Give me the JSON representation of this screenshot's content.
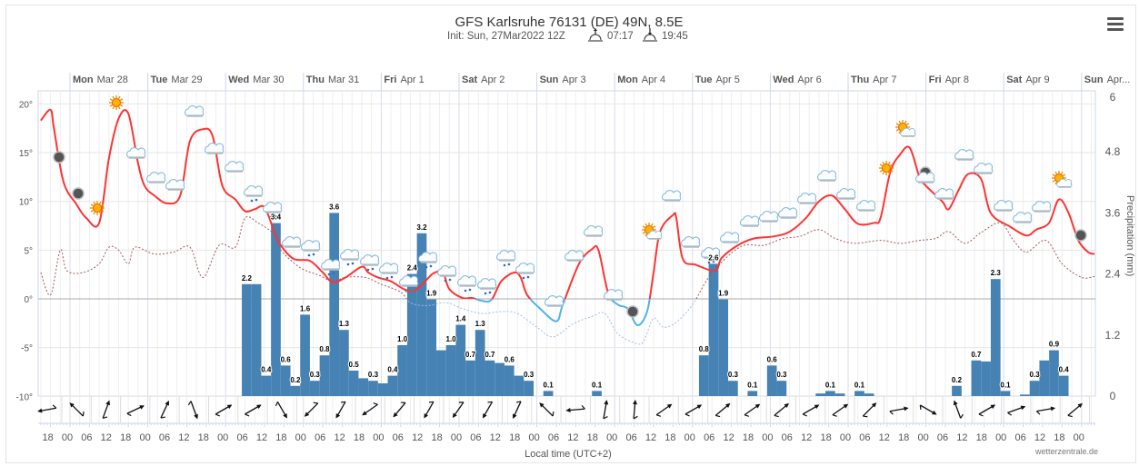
{
  "chart_data": {
    "type": "line+bar",
    "title": "GFS Karlsruhe 76131 (DE) 49N, 8.5E",
    "subtitle": {
      "init": "Init: Sun, 27Mar2022 12Z",
      "sunrise": "07:17",
      "sunset": "19:45"
    },
    "xlabel": "Local time (UTC+2)",
    "ylabel_right": "Precipitation (mm)",
    "credit": "wetterzentrale.de",
    "x_units": "hours since Mon Mar 28 00:00 local",
    "days": [
      {
        "weekday": "Mon",
        "date": "Mar 28"
      },
      {
        "weekday": "Tue",
        "date": "Mar 29"
      },
      {
        "weekday": "Wed",
        "date": "Mar 30"
      },
      {
        "weekday": "Thu",
        "date": "Mar 31"
      },
      {
        "weekday": "Fri",
        "date": "Apr 1"
      },
      {
        "weekday": "Sat",
        "date": "Apr 2"
      },
      {
        "weekday": "Sun",
        "date": "Apr 3"
      },
      {
        "weekday": "Mon",
        "date": "Apr 4"
      },
      {
        "weekday": "Tue",
        "date": "Apr 5"
      },
      {
        "weekday": "Wed",
        "date": "Apr 6"
      },
      {
        "weekday": "Thu",
        "date": "Apr 7"
      },
      {
        "weekday": "Fri",
        "date": "Apr 8"
      },
      {
        "weekday": "Sat",
        "date": "Apr 9"
      },
      {
        "weekday": "Sun",
        "date": "Apr..."
      }
    ],
    "x_tick_labels": [
      "18",
      "00",
      "06",
      "12",
      "18",
      "00",
      "06",
      "12",
      "18",
      "00",
      "06",
      "12",
      "18",
      "00",
      "06",
      "12",
      "18",
      "00",
      "06",
      "12",
      "18",
      "00",
      "06",
      "12",
      "18",
      "00",
      "06",
      "12",
      "18",
      "00",
      "06",
      "12",
      "18",
      "00",
      "06",
      "12",
      "18",
      "00",
      "06",
      "12",
      "18",
      "00",
      "06",
      "12",
      "18",
      "00",
      "06",
      "12",
      "18",
      "00",
      "06",
      "12",
      "18",
      "00"
    ],
    "y_left": {
      "ticks": [
        "20°",
        "15°",
        "10°",
        "5°",
        "0°",
        "-5°",
        "-10°"
      ],
      "values": [
        20,
        15,
        10,
        5,
        0,
        -5,
        -10
      ],
      "range": [
        -10,
        20
      ]
    },
    "y_right": {
      "ticks": [
        "6",
        "4.8",
        "3.6",
        "2.4",
        "1.2",
        "0"
      ],
      "values": [
        6,
        4.8,
        3.6,
        2.4,
        1.2,
        0
      ],
      "range": [
        0,
        6
      ]
    },
    "colors": {
      "temp_warm": "#ff3333",
      "temp_cold": "#4fb3ec",
      "dew_warm": "#a05a5a",
      "dew_cold": "#9fbde3",
      "precip": "#4682b4"
    },
    "temperature": {
      "name": "Temperature (°C)",
      "x": [
        -9,
        -6,
        -5,
        -2,
        2,
        5,
        9,
        12,
        15,
        18,
        21,
        23,
        26,
        30,
        34,
        37,
        41,
        44,
        47,
        51,
        54,
        57,
        60,
        63,
        65,
        69,
        74,
        78,
        81,
        85,
        90,
        92,
        95,
        99,
        103,
        106,
        109,
        112,
        115,
        117,
        121,
        124,
        127,
        130,
        133,
        137,
        139,
        141,
        145,
        150,
        152,
        157,
        161,
        163,
        166,
        169,
        172,
        175,
        178,
        180,
        182,
        186,
        187,
        189,
        193,
        199,
        201,
        206,
        211,
        217,
        222,
        227,
        231,
        235,
        239,
        243,
        248,
        250,
        253,
        256,
        259,
        262,
        264,
        269,
        271,
        274,
        277,
        281,
        284,
        290,
        295,
        298,
        302,
        305,
        308,
        311,
        314,
        316
      ],
      "y": [
        18.3,
        19.4,
        17.6,
        12,
        9.7,
        8.3,
        7.8,
        14.4,
        18.5,
        19,
        13.9,
        11.6,
        10.6,
        9.8,
        10.6,
        16.2,
        17.4,
        16.7,
        11.6,
        10.2,
        9,
        9.2,
        9.4,
        6.9,
        5.5,
        4.1,
        3.9,
        2.7,
        1.7,
        2.2,
        3.3,
        2.7,
        2.2,
        1.8,
        1,
        0.8,
        1.6,
        2.6,
        2.7,
        1,
        0.1,
        0.1,
        -0.2,
        -0.1,
        1.8,
        2.7,
        2.2,
        0.4,
        -1,
        -2.3,
        -0.6,
        3.6,
        5.1,
        5,
        0.6,
        -0.6,
        -1,
        -2.7,
        -1.3,
        2.7,
        6.9,
        8.6,
        8.3,
        4.1,
        3.5,
        2.9,
        4.2,
        5.5,
        6.2,
        6.4,
        6.9,
        8.3,
        10,
        10.6,
        9.2,
        7.7,
        7.8,
        8.3,
        13,
        14.8,
        15.5,
        12.5,
        11.6,
        10,
        9.2,
        11.1,
        12.8,
        12.3,
        8.8,
        7.4,
        6.5,
        7.1,
        7.8,
        10.2,
        8.8,
        6,
        4.8,
        4.6
      ]
    },
    "dewpoint": {
      "name": "Dew point (°C)",
      "x": [
        -9,
        -6,
        -3,
        -1,
        4,
        9,
        12,
        15,
        18,
        20,
        26,
        32,
        37,
        41,
        46,
        51,
        54,
        58,
        63,
        65,
        71,
        77,
        81,
        85,
        91,
        96,
        102,
        105,
        110,
        116,
        121,
        127,
        133,
        138,
        144,
        149,
        155,
        161,
        165,
        169,
        175,
        177,
        180,
        183,
        187,
        192,
        197,
        203,
        208,
        214,
        220,
        225,
        231,
        236,
        242,
        250,
        256,
        262,
        267,
        271,
        276,
        281,
        287,
        291,
        295,
        301,
        306,
        312,
        316
      ],
      "y": [
        2.7,
        0.4,
        5,
        2.9,
        2.7,
        3.6,
        5.3,
        5,
        3.6,
        5.3,
        4.6,
        4.8,
        5.3,
        2.2,
        5.5,
        5.3,
        8.3,
        7.8,
        6.6,
        5,
        3.2,
        2.4,
        1.8,
        2.2,
        2.2,
        1.5,
        0.7,
        -0.4,
        -0.7,
        -0.4,
        -1,
        -1.5,
        -1.3,
        -1.5,
        -2.9,
        -3.9,
        -2.6,
        -1.8,
        -1.5,
        -3.6,
        -4.6,
        -4.3,
        -2,
        -2.9,
        -2.4,
        -0.6,
        2.2,
        4.4,
        5.5,
        5.5,
        6.2,
        6.4,
        7.1,
        6.2,
        5.7,
        6,
        5.7,
        6,
        6.2,
        6.9,
        5.7,
        6.8,
        7.8,
        6,
        4.8,
        6,
        3.6,
        2.2,
        2.3
      ]
    },
    "precipitation": {
      "name": "Precipitation (mm / 3h)",
      "bar_hours": 3,
      "start": [
        53,
        56,
        59,
        62,
        65,
        68,
        71,
        74,
        77,
        80,
        83,
        86,
        89,
        92,
        95,
        98,
        101,
        104,
        107,
        110,
        113,
        116,
        119,
        122,
        125,
        128,
        131,
        134,
        137,
        140,
        146,
        161,
        194,
        197,
        200,
        203,
        209,
        215,
        218,
        230,
        233,
        236,
        242,
        245,
        272,
        278,
        281,
        284,
        287,
        293,
        296,
        299,
        302,
        305
      ],
      "values": [
        2.2,
        2.2,
        0.4,
        3.4,
        0.6,
        0.2,
        1.6,
        0.3,
        0.8,
        3.6,
        1.3,
        0.5,
        0.35,
        0.3,
        0.25,
        0.4,
        1.0,
        2.4,
        3.2,
        1.9,
        0.9,
        1.0,
        1.4,
        0.7,
        1.3,
        0.7,
        0.65,
        0.6,
        0.4,
        0.3,
        0.1,
        0.1,
        0.8,
        2.6,
        1.9,
        0.3,
        0.1,
        0.6,
        0.3,
        0.05,
        0.1,
        0.05,
        0.1,
        0.05,
        0.2,
        0.7,
        0.68,
        2.3,
        0.1,
        0.03,
        0.3,
        0.7,
        0.9,
        0.4
      ],
      "labels": [
        "2.2",
        "",
        "0.4",
        "3.4",
        "0.6",
        "0.2",
        "1.6",
        "0.3",
        "0.8",
        "3.6",
        "1.3",
        "0.5",
        "",
        "0.3",
        "",
        "0.4",
        "1.0",
        "2.4",
        "3.2",
        "1.9",
        "",
        "1.0",
        "1.4",
        "0.7",
        "1.3",
        "0.7",
        "",
        "0.6",
        "",
        "0.3",
        "0.1",
        "0.1",
        "0.8",
        "2.6",
        "1.9",
        "0.3",
        "0.1",
        "0.6",
        "0.3",
        "",
        "0.1",
        "",
        "0.1",
        "",
        "0.2",
        "0.7",
        "",
        "2.3",
        "0.1",
        "",
        "0.3",
        "",
        "0.9",
        "0.4"
      ]
    },
    "wind_direction_deg": [
      260,
      315,
      20,
      65,
      25,
      160,
      60,
      60,
      150,
      225,
      210,
      235,
      220,
      210,
      215,
      210,
      205,
      315,
      265,
      10,
      5,
      55,
      60,
      50,
      55,
      50,
      60,
      55,
      45,
      80,
      120,
      340,
      60,
      70,
      80,
      50
    ],
    "weather_icons": [
      "moon",
      "moon",
      "sun",
      "sun",
      "cloud",
      "cloud",
      "cloud",
      "cloud",
      "cloud",
      "cloud",
      "rain",
      "rain",
      "cloud",
      "rain",
      "rain",
      "rain",
      "rain",
      "rain",
      "snow",
      "rain",
      "rain",
      "rain",
      "rain",
      "rain",
      "rain",
      "cloud",
      "cloud",
      "cloud",
      "cloud",
      "moon",
      "sun-cloud",
      "cloud",
      "cloud",
      "rain",
      "cloud",
      "cloud",
      "cloud",
      "cloud",
      "cloud",
      "cloud",
      "cloud",
      "cloud",
      "sun",
      "sun-cloud",
      "moon",
      "cloud",
      "cloud",
      "cloud",
      "cloud",
      "cloud",
      "cloud",
      "cloud",
      "sun-cloud",
      "moon"
    ]
  }
}
